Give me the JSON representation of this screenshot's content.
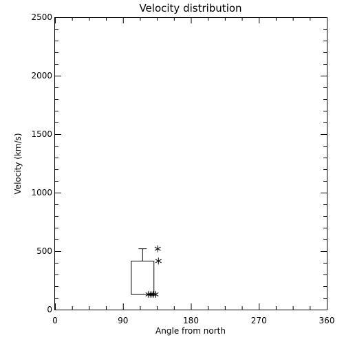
{
  "chart_data": {
    "type": "box",
    "title": "Velocity distribution",
    "xlabel": "Angle from north",
    "ylabel": "Velocity (km/s)",
    "xlim": [
      0,
      360
    ],
    "ylim": [
      0,
      2500
    ],
    "x_ticks": [
      0,
      90,
      180,
      270,
      360
    ],
    "y_ticks": [
      0,
      500,
      1000,
      1500,
      2000,
      2500
    ],
    "x_tick_labels": [
      "0",
      "90",
      "180",
      "270",
      "360"
    ],
    "y_tick_labels": [
      "0",
      "500",
      "1000",
      "1500",
      "2000",
      "2500"
    ],
    "grid": false,
    "box": {
      "x_range": [
        101,
        131
      ],
      "median_x": 116,
      "q1": 130,
      "q3": 415,
      "whisker_high": 520
    },
    "points": [
      {
        "x": 136,
        "y": 520
      },
      {
        "x": 137,
        "y": 415
      },
      {
        "x": 124,
        "y": 130
      },
      {
        "x": 127,
        "y": 130
      },
      {
        "x": 130,
        "y": 130
      },
      {
        "x": 133,
        "y": 130
      }
    ]
  },
  "colors": {
    "axis": "#000000",
    "marks": "#000000",
    "background": "#ffffff"
  }
}
